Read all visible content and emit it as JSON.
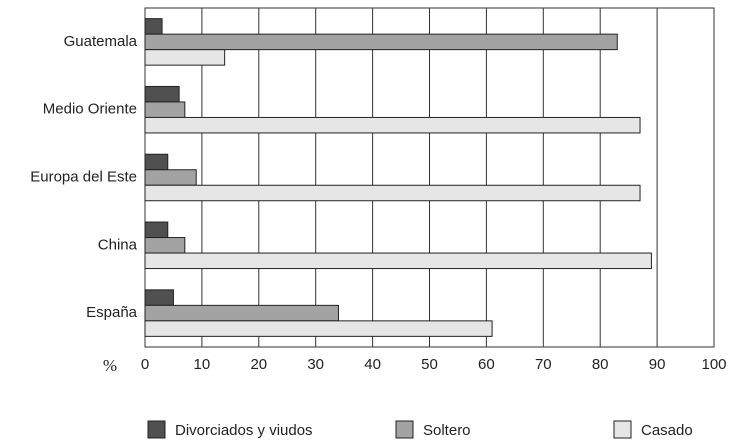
{
  "chart_data": {
    "type": "hbar",
    "categories": [
      "Guatemala",
      "Medio Oriente",
      "Europa del Este",
      "China",
      "España"
    ],
    "series": [
      {
        "name": "Divorciados y viudos",
        "color": "#505050",
        "values": [
          3,
          6,
          4,
          4,
          5
        ]
      },
      {
        "name": "Soltero",
        "color": "#a3a3a3",
        "values": [
          83,
          7,
          9,
          7,
          34
        ]
      },
      {
        "name": "Casado",
        "color": "#e6e6e6",
        "values": [
          14,
          87,
          87,
          89,
          61
        ]
      }
    ],
    "x_label": "%",
    "xlim": [
      0,
      100
    ],
    "xticks": [
      0,
      10,
      20,
      30,
      40,
      50,
      60,
      70,
      80,
      90,
      100
    ],
    "grid": true,
    "legend": "bottom"
  }
}
